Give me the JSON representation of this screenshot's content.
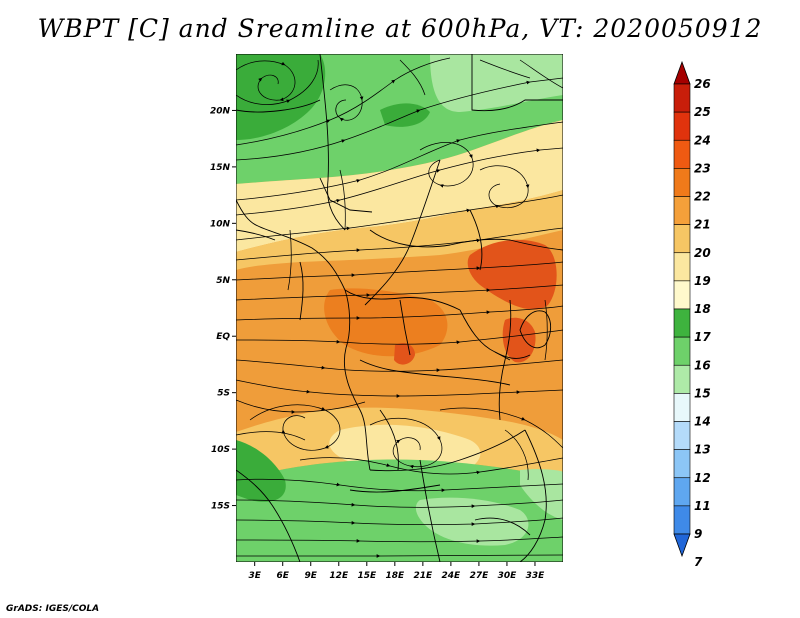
{
  "title": "WBPT [C] and Sreamline at 600hPa, VT: 2020050912",
  "credit": "GrADS: IGES/COLA",
  "map": {
    "lat_ticks": [
      "20N",
      "15N",
      "10N",
      "5N",
      "EQ",
      "5S",
      "10S",
      "15S"
    ],
    "lat_values": [
      20,
      15,
      10,
      5,
      0,
      -5,
      -10,
      -15
    ],
    "lon_ticks": [
      "3E",
      "6E",
      "9E",
      "12E",
      "15E",
      "18E",
      "21E",
      "24E",
      "27E",
      "30E",
      "33E"
    ],
    "lon_values": [
      3,
      6,
      9,
      12,
      15,
      18,
      21,
      24,
      27,
      30,
      33
    ],
    "lon_range": [
      1,
      36
    ],
    "lat_range": [
      -20,
      25
    ]
  },
  "colorbar": {
    "labels": [
      "26",
      "25",
      "24",
      "23",
      "22",
      "21",
      "20",
      "19",
      "18",
      "17",
      "16",
      "15",
      "14",
      "13",
      "12",
      "11",
      "9",
      "7"
    ],
    "colors": [
      "#a50000",
      "#c81e0a",
      "#e0330d",
      "#ef5a12",
      "#f07a1a",
      "#f4a03a",
      "#f6c664",
      "#fbe7a0",
      "#fff9cc",
      "#3eb33e",
      "#6ed16a",
      "#aeeaa8",
      "#e8f8fb",
      "#b4dbfa",
      "#8cc6f6",
      "#5fa7f0",
      "#3f8ae8",
      "#2066d8"
    ]
  },
  "palette": {
    "green_dark": "#3aac3a",
    "green": "#6ed16a",
    "green_light": "#a9e6a0",
    "yellow": "#fbe7a0",
    "tan": "#f6c664",
    "orange": "#f0a13a",
    "orange_dark": "#ec7f1f",
    "red": "#e2541a"
  }
}
